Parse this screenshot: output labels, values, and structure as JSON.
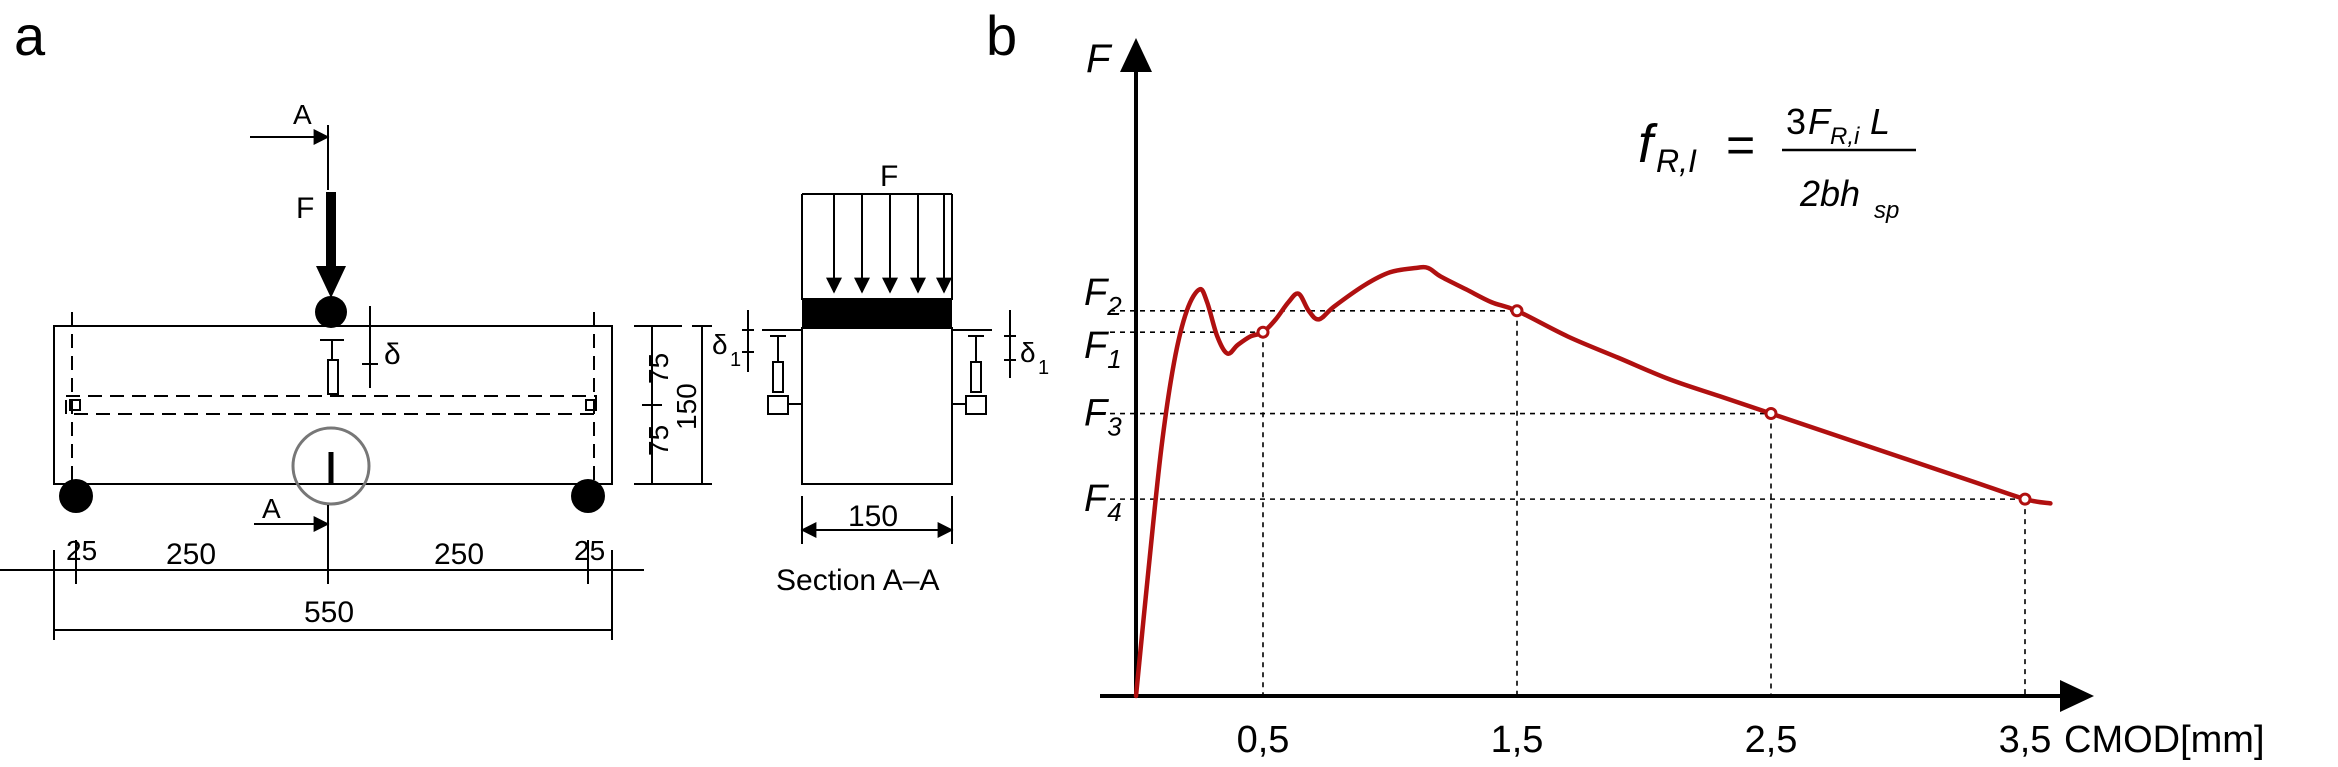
{
  "panel_a": {
    "label": "a",
    "section_mark_top": "A",
    "section_mark_bottom": "A",
    "force_label": "F",
    "deflection_label": "δ",
    "dim_75_top": "75",
    "dim_75_bottom": "75",
    "dim_150_height": "150",
    "dim_25_left": "25",
    "dim_250_left": "250",
    "dim_250_right": "250",
    "dim_25_right": "25",
    "dim_550": "550"
  },
  "section": {
    "force_label": "F",
    "delta_left_main": "δ",
    "delta_left_sub": "1",
    "delta_right_main": "δ",
    "delta_right_sub": "1",
    "width_label": "150",
    "caption": "Section A–A"
  },
  "panel_b": {
    "label": "b",
    "y_axis_label": "F",
    "x_axis_label": "CMOD[mm]",
    "formula": {
      "lhs_main": "f",
      "lhs_sub": "R,I",
      "equals": "=",
      "num_pre": "3",
      "num_main": "F",
      "num_sub": "R,i",
      "num_post": "L",
      "den_main": "2bh",
      "den_sub": "sp"
    },
    "force_levels": [
      {
        "main": "F",
        "sub": "2"
      },
      {
        "main": "F",
        "sub": "1"
      },
      {
        "main": "F",
        "sub": "3"
      },
      {
        "main": "F",
        "sub": "4"
      }
    ],
    "colors": {
      "curve": "#b01010",
      "axes": "#000000"
    }
  },
  "chart_data": {
    "type": "line",
    "x_ticks": [
      "0,5",
      "1,5",
      "2,5",
      "3,5"
    ],
    "xlabel": "CMOD[mm]",
    "ylabel": "F",
    "grid": false,
    "series": [
      {
        "x": [
          0.0,
          0.05,
          0.1,
          0.15,
          0.2,
          0.25,
          0.28,
          0.32,
          0.36,
          0.4,
          0.45,
          0.5,
          0.55,
          0.6,
          0.64,
          0.68,
          0.72,
          0.78,
          0.9,
          1.0,
          1.1,
          1.15,
          1.2,
          1.3,
          1.4,
          1.5,
          1.7,
          1.9,
          2.1,
          2.3,
          2.5,
          2.7,
          2.9,
          3.1,
          3.3,
          3.5,
          3.6
        ],
        "y": [
          0.0,
          0.3,
          0.58,
          0.78,
          0.9,
          0.95,
          0.92,
          0.84,
          0.8,
          0.82,
          0.84,
          0.85,
          0.88,
          0.92,
          0.94,
          0.9,
          0.88,
          0.91,
          0.96,
          0.99,
          1.0,
          1.0,
          0.98,
          0.95,
          0.92,
          0.9,
          0.84,
          0.79,
          0.74,
          0.7,
          0.66,
          0.62,
          0.58,
          0.54,
          0.5,
          0.46,
          0.45
        ]
      }
    ],
    "markers": [
      {
        "x": 0.5,
        "y": 0.85,
        "label": "F1"
      },
      {
        "x": 1.5,
        "y": 0.9,
        "label": "F2"
      },
      {
        "x": 2.5,
        "y": 0.66,
        "label": "F3"
      },
      {
        "x": 3.5,
        "y": 0.46,
        "label": "F4"
      }
    ]
  }
}
